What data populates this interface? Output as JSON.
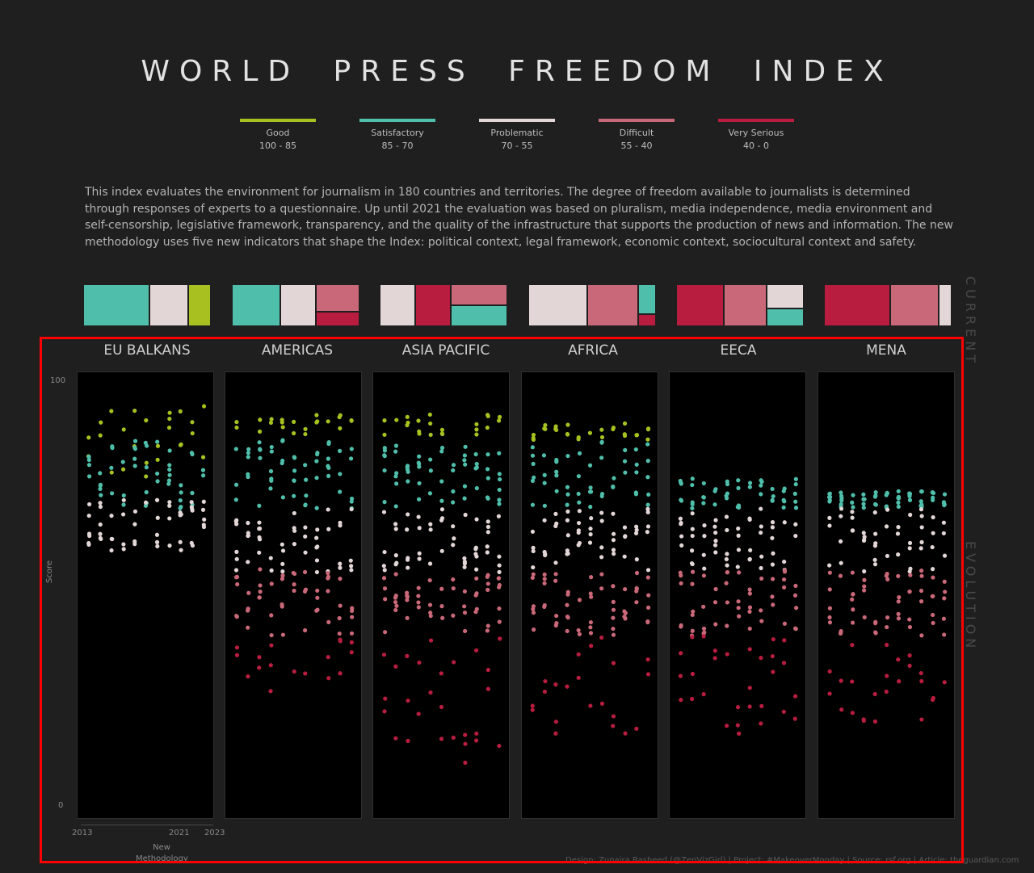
{
  "title": "WORLD PRESS FREEDOM INDEX",
  "legend": [
    {
      "label": "Good",
      "range": "100 - 85",
      "color": "#a8c020"
    },
    {
      "label": "Satisfactory",
      "range": "85 - 70",
      "color": "#4fbfab"
    },
    {
      "label": "Problematic",
      "range": "70 - 55",
      "color": "#e2d6d6"
    },
    {
      "label": "Difficult",
      "range": "55 - 40",
      "color": "#c96878"
    },
    {
      "label": "Very Serious",
      "range": "40 - 0",
      "color": "#b81d40"
    }
  ],
  "description": "This index evaluates the environment for journalism in 180 countries and territories. The degree of freedom available to journalists is determined through responses of experts to a questionnaire. Up until 2021 the evaluation was based on pluralism, media independence, media environment and self-censorship, legislative framework, transparency, and the quality of the infrastructure that supports the production of news and information. The new methodology uses five new indicators that shape the Index: political context, legal framework, economic context, sociocultural context and safety.",
  "side_labels": {
    "current": "CURRENT",
    "evolution": "EVOLUTION"
  },
  "axis": {
    "y_label": "Score",
    "y_max_label": "100",
    "y_min_label": "0",
    "x_start": "2013",
    "x_mid": "2021",
    "x_end": "2023",
    "x_note": "New Methodology"
  },
  "credit": "Design: Zunaira Rasheed (@ZenVizGirl) | Project: #MakeoverMonday | Source: rsf.org | Article: theguardian.com",
  "chart_data": {
    "type": "scatter",
    "title": "WORLD PRESS FREEDOM INDEX",
    "ylabel": "Score",
    "ylim": [
      0,
      100
    ],
    "xlim": [
      2013,
      2023
    ],
    "regions": [
      {
        "name": "EU BALKANS",
        "bands": {
          "good": [
            77,
            95
          ],
          "satisfactory": [
            70,
            86
          ],
          "problematic": [
            60,
            72
          ],
          "difficult": null,
          "very_serious": null
        },
        "current": [
          {
            "cat": "satisfactory",
            "share": 0.52
          },
          {
            "cat": "problematic",
            "share": 0.3
          },
          {
            "cat": "good",
            "share": 0.18
          }
        ]
      },
      {
        "name": "AMERICAS",
        "bands": {
          "good": [
            87,
            92
          ],
          "satisfactory": [
            70,
            86
          ],
          "problematic": [
            55,
            70
          ],
          "difficult": [
            40,
            56
          ],
          "very_serious": [
            27,
            40
          ]
        },
        "current": [
          {
            "cat": "satisfactory",
            "share": 0.38
          },
          {
            "cat": "problematic",
            "share": 0.28
          },
          {
            "cat": "difficult",
            "share": 0.22
          },
          {
            "cat": "very_serious",
            "share": 0.12
          }
        ]
      },
      {
        "name": "ASIA PACIFIC",
        "bands": {
          "good": [
            87,
            92
          ],
          "satisfactory": [
            70,
            85
          ],
          "problematic": [
            55,
            70
          ],
          "difficult": [
            40,
            56
          ],
          "very_serious": [
            10,
            40
          ]
        },
        "current": [
          {
            "cat": "problematic",
            "share": 0.28
          },
          {
            "cat": "very_serious",
            "share": 0.28
          },
          {
            "cat": "difficult",
            "share": 0.22
          },
          {
            "cat": "satisfactory",
            "share": 0.22
          }
        ]
      },
      {
        "name": "AFRICA",
        "bands": {
          "good": [
            86,
            90
          ],
          "satisfactory": [
            70,
            86
          ],
          "problematic": [
            55,
            70
          ],
          "difficult": [
            40,
            56
          ],
          "very_serious": [
            17,
            40
          ]
        },
        "current": [
          {
            "cat": "problematic",
            "share": 0.46
          },
          {
            "cat": "difficult",
            "share": 0.4
          },
          {
            "cat": "satisfactory",
            "share": 0.1
          },
          {
            "cat": "very_serious",
            "share": 0.04
          }
        ]
      },
      {
        "name": "EECA",
        "bands": {
          "good": null,
          "satisfactory": [
            70,
            77
          ],
          "problematic": [
            55,
            70
          ],
          "difficult": [
            40,
            56
          ],
          "very_serious": [
            17,
            40
          ]
        },
        "current": [
          {
            "cat": "very_serious",
            "share": 0.45
          },
          {
            "cat": "difficult",
            "share": 0.4
          },
          {
            "cat": "problematic",
            "share": 0.2
          },
          {
            "cat": "satisfactory",
            "share": 0.15
          }
        ]
      },
      {
        "name": "MENA",
        "bands": {
          "good": null,
          "satisfactory": [
            70,
            74
          ],
          "problematic": [
            55,
            70
          ],
          "difficult": [
            40,
            56
          ],
          "very_serious": [
            20,
            40
          ]
        },
        "current": [
          {
            "cat": "very_serious",
            "share": 0.52
          },
          {
            "cat": "difficult",
            "share": 0.38
          },
          {
            "cat": "problematic",
            "share": 0.1
          }
        ]
      }
    ]
  }
}
